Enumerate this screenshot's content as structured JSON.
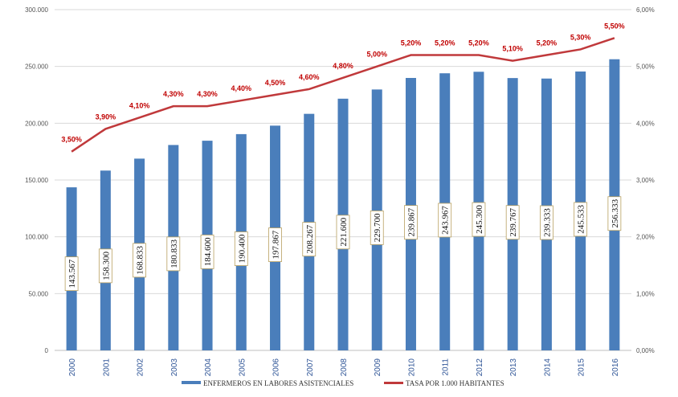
{
  "chart_data": {
    "type": "bar",
    "title": "",
    "xlabel": "",
    "ylabel": "",
    "categories": [
      "2000",
      "2001",
      "2002",
      "2003",
      "2004",
      "2005",
      "2006",
      "2007",
      "2008",
      "2009",
      "2010",
      "2011",
      "2012",
      "2013",
      "2014",
      "2015",
      "2016"
    ],
    "series": [
      {
        "name": "ENFERMEROS EN LABORES ASISTENCIALES",
        "type": "bar",
        "axis": "left",
        "color": "#4a7ebb",
        "values": [
          143567,
          158300,
          168833,
          180833,
          184600,
          190400,
          197867,
          208267,
          221600,
          229700,
          239867,
          243967,
          245300,
          239767,
          239333,
          245533,
          256333
        ],
        "labels": [
          "143.567",
          "158.300",
          "168.833",
          "180.833",
          "184.600",
          "190.400",
          "197.867",
          "208.267",
          "221.600",
          "229.700",
          "239.867",
          "243.967",
          "245.300",
          "239.767",
          "239.333",
          "245.533",
          "256.333"
        ]
      },
      {
        "name": "TASA POR 1.000 HABITANTES",
        "type": "line",
        "axis": "right",
        "color": "#c0393b",
        "values": [
          3.5,
          3.9,
          4.1,
          4.3,
          4.3,
          4.4,
          4.5,
          4.6,
          4.8,
          5.0,
          5.2,
          5.2,
          5.2,
          5.1,
          5.2,
          5.3,
          5.5
        ],
        "labels": [
          "3,50%",
          "3,90%",
          "4,10%",
          "4,30%",
          "4,30%",
          "4,40%",
          "4,50%",
          "4,60%",
          "4,80%",
          "5,00%",
          "5,20%",
          "5,20%",
          "5,20%",
          "5,10%",
          "5,20%",
          "5,30%",
          "5,50%"
        ]
      }
    ],
    "ylim": [
      0,
      300000
    ],
    "y2lim": [
      0,
      6
    ],
    "yticks": [
      "0",
      "50.000",
      "100.000",
      "150.000",
      "200.000",
      "250.000",
      "300.000"
    ],
    "y2ticks": [
      "0,00%",
      "1,00%",
      "2,00%",
      "3,00%",
      "4,00%",
      "5,00%",
      "6,00%"
    ],
    "grid": true,
    "legend": "bottom"
  }
}
